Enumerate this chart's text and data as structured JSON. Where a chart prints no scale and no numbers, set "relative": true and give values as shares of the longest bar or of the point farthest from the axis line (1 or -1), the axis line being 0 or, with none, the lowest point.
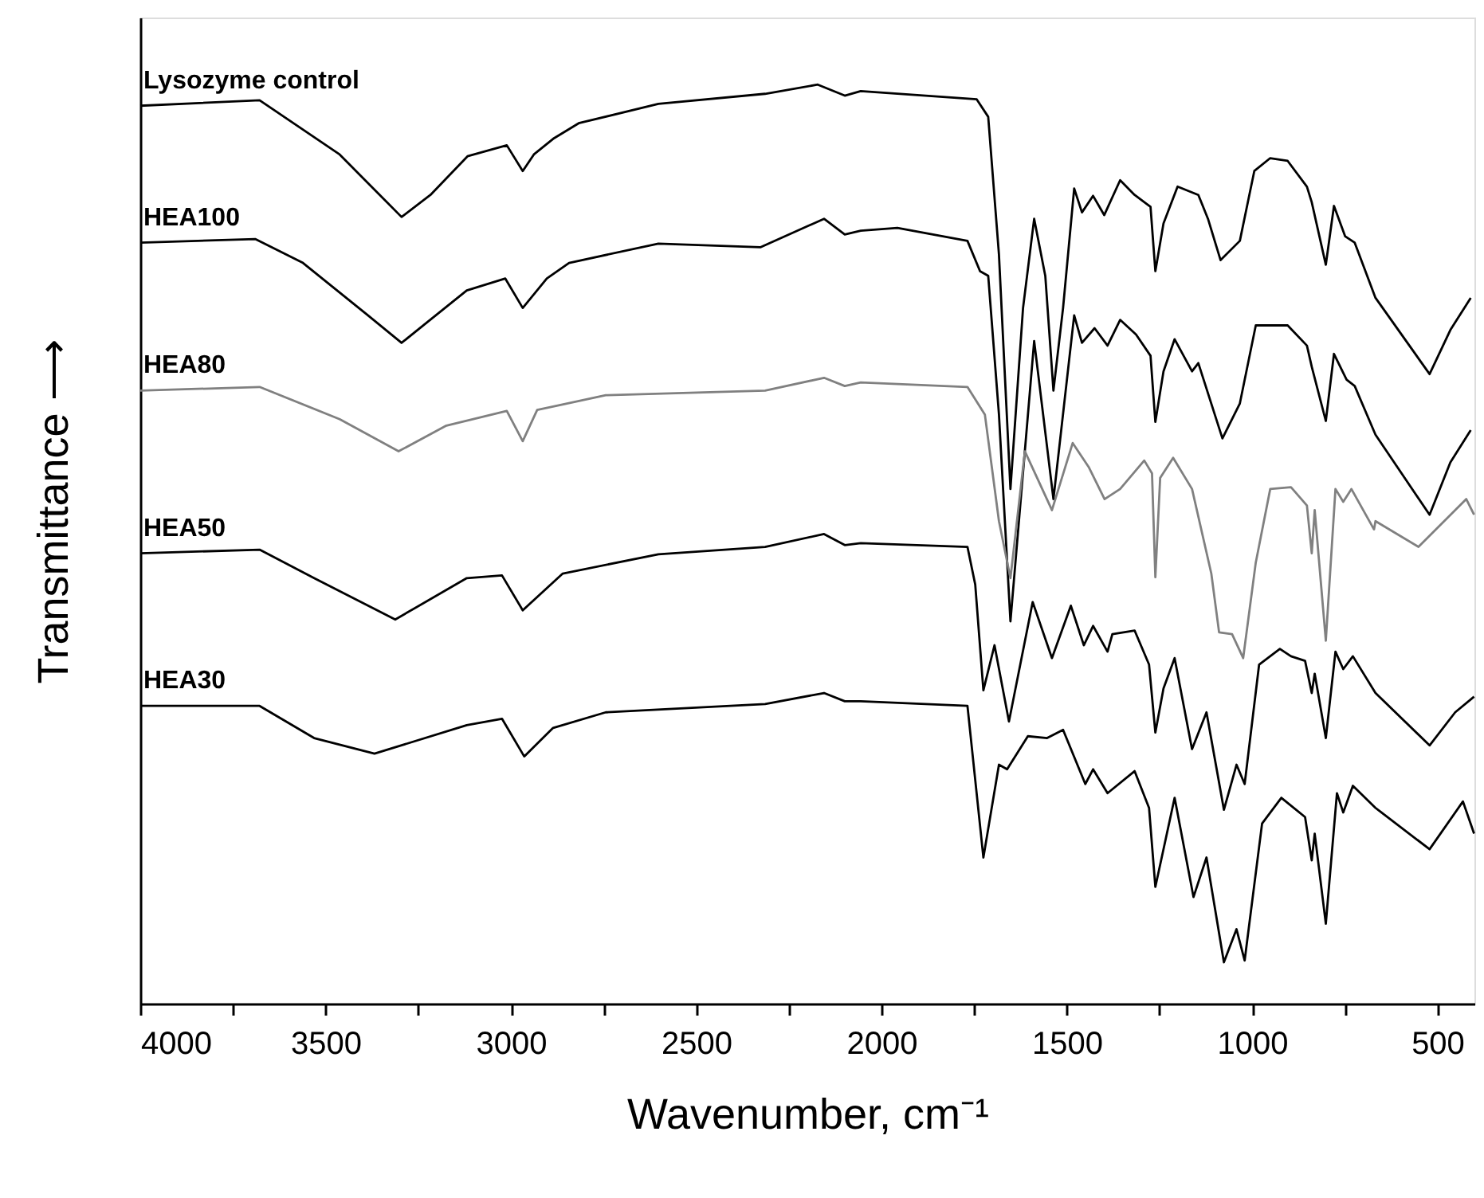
{
  "chart_data": {
    "type": "line",
    "relative": true,
    "xlabel": "Wavenumber, cm⁻¹",
    "ylabel": "Transmittance ⟶",
    "xlim": [
      4000,
      400
    ],
    "xticks": [
      4000,
      {
        "value": 3750,
        "label": null
      },
      3500,
      {
        "value": 3250,
        "label": null
      },
      3000,
      {
        "value": 2750,
        "label": null
      },
      2500,
      {
        "value": 2250,
        "label": null
      },
      2000,
      {
        "value": 1750,
        "label": null
      },
      1500,
      {
        "value": 1250,
        "label": null
      },
      1000,
      {
        "value": 750,
        "label": null
      },
      500
    ],
    "grid": false,
    "line_style": "solid",
    "marker": "none",
    "series": [
      {
        "name": "Lysozyme control",
        "color": "#000000",
        "x": [
          4000,
          3678,
          3462,
          3295,
          3217,
          3117,
          3011,
          2968,
          2938,
          2886,
          2817,
          2602,
          2314,
          2172,
          2099,
          2056,
          1743,
          1712,
          1683,
          1652,
          1618,
          1588,
          1558,
          1536,
          1510,
          1480,
          1459,
          1429,
          1399,
          1356,
          1317,
          1274,
          1261,
          1239,
          1201,
          1145,
          1119,
          1085,
          1033,
          994,
          951,
          904,
          852,
          839,
          801,
          779,
          749,
          723,
          667,
          521,
          465,
          410
        ],
        "values": [
          0.977,
          0.983,
          0.924,
          0.856,
          0.88,
          0.922,
          0.934,
          0.906,
          0.924,
          0.941,
          0.958,
          0.979,
          0.99,
          1.0,
          0.988,
          0.993,
          0.984,
          0.965,
          0.815,
          0.56,
          0.757,
          0.854,
          0.792,
          0.667,
          0.757,
          0.887,
          0.861,
          0.879,
          0.858,
          0.896,
          0.88,
          0.867,
          0.797,
          0.849,
          0.889,
          0.88,
          0.854,
          0.809,
          0.83,
          0.906,
          0.92,
          0.917,
          0.889,
          0.872,
          0.804,
          0.868,
          0.835,
          0.828,
          0.768,
          0.685,
          0.733,
          0.768
        ]
      },
      {
        "name": "HEA100",
        "color": "#000000",
        "x": [
          4000,
          3690,
          3561,
          3389,
          3295,
          3230,
          3119,
          3015,
          2968,
          2903,
          2843,
          2602,
          2327,
          2155,
          2099,
          2056,
          1957,
          1768,
          1734,
          1712,
          1683,
          1652,
          1588,
          1536,
          1480,
          1459,
          1425,
          1390,
          1356,
          1313,
          1274,
          1261,
          1239,
          1209,
          1162,
          1145,
          1080,
          1033,
          990,
          904,
          852,
          839,
          801,
          779,
          745,
          723,
          667,
          521,
          465,
          410
        ],
        "values": [
          0.828,
          0.832,
          0.806,
          0.75,
          0.719,
          0.74,
          0.776,
          0.789,
          0.757,
          0.789,
          0.806,
          0.827,
          0.823,
          0.854,
          0.837,
          0.841,
          0.844,
          0.83,
          0.797,
          0.792,
          0.641,
          0.416,
          0.721,
          0.549,
          0.749,
          0.719,
          0.735,
          0.716,
          0.744,
          0.728,
          0.705,
          0.633,
          0.688,
          0.723,
          0.688,
          0.697,
          0.615,
          0.653,
          0.738,
          0.738,
          0.716,
          0.693,
          0.634,
          0.707,
          0.679,
          0.672,
          0.619,
          0.532,
          0.589,
          0.624
        ]
      },
      {
        "name": "HEA80",
        "color": "#808080",
        "x": [
          4000,
          3678,
          3462,
          3303,
          3174,
          3011,
          2968,
          2929,
          2744,
          2314,
          2155,
          2099,
          2056,
          1768,
          1721,
          1683,
          1652,
          1613,
          1540,
          1484,
          1441,
          1398,
          1356,
          1291,
          1270,
          1261,
          1248,
          1213,
          1162,
          1110,
          1089,
          1054,
          1024,
          990,
          951,
          895,
          852,
          839,
          831,
          801,
          775,
          754,
          732,
          671,
          667,
          551,
          422,
          401
        ],
        "values": [
          0.667,
          0.671,
          0.636,
          0.601,
          0.629,
          0.645,
          0.612,
          0.646,
          0.662,
          0.667,
          0.681,
          0.672,
          0.676,
          0.671,
          0.641,
          0.525,
          0.463,
          0.601,
          0.537,
          0.61,
          0.584,
          0.549,
          0.56,
          0.591,
          0.577,
          0.464,
          0.572,
          0.594,
          0.56,
          0.468,
          0.404,
          0.402,
          0.376,
          0.48,
          0.56,
          0.562,
          0.542,
          0.49,
          0.537,
          0.395,
          0.56,
          0.546,
          0.56,
          0.516,
          0.525,
          0.497,
          0.549,
          0.532
        ]
      },
      {
        "name": "HEA50",
        "color": "#000000",
        "x": [
          4000,
          3678,
          3531,
          3312,
          3119,
          3024,
          2968,
          2860,
          2602,
          2314,
          2155,
          2099,
          2056,
          1768,
          1747,
          1725,
          1695,
          1656,
          1592,
          1540,
          1489,
          1454,
          1429,
          1390,
          1377,
          1317,
          1278,
          1261,
          1239,
          1209,
          1162,
          1123,
          1076,
          1042,
          1020,
          981,
          925,
          895,
          857,
          839,
          831,
          801,
          775,
          754,
          728,
          667,
          521,
          452,
          401
        ],
        "values": [
          0.49,
          0.494,
          0.463,
          0.418,
          0.463,
          0.466,
          0.428,
          0.468,
          0.489,
          0.497,
          0.511,
          0.499,
          0.501,
          0.497,
          0.456,
          0.341,
          0.39,
          0.307,
          0.437,
          0.376,
          0.433,
          0.39,
          0.411,
          0.383,
          0.402,
          0.406,
          0.369,
          0.295,
          0.343,
          0.376,
          0.277,
          0.317,
          0.211,
          0.26,
          0.239,
          0.369,
          0.386,
          0.378,
          0.373,
          0.338,
          0.359,
          0.289,
          0.383,
          0.364,
          0.378,
          0.338,
          0.281,
          0.317,
          0.334
        ]
      },
      {
        "name": "HEA30",
        "color": "#000000",
        "x": [
          4000,
          3678,
          3531,
          3368,
          3119,
          3024,
          2964,
          2886,
          2744,
          2314,
          2155,
          2099,
          2056,
          1768,
          1725,
          1683,
          1661,
          1605,
          1553,
          1510,
          1450,
          1429,
          1390,
          1317,
          1278,
          1261,
          1209,
          1158,
          1123,
          1076,
          1042,
          1020,
          973,
          921,
          857,
          839,
          831,
          801,
          771,
          754,
          728,
          667,
          521,
          431,
          401
        ],
        "values": [
          0.324,
          0.324,
          0.289,
          0.272,
          0.303,
          0.31,
          0.269,
          0.3,
          0.317,
          0.326,
          0.338,
          0.329,
          0.329,
          0.324,
          0.159,
          0.26,
          0.255,
          0.291,
          0.289,
          0.298,
          0.239,
          0.255,
          0.229,
          0.253,
          0.213,
          0.127,
          0.224,
          0.116,
          0.159,
          0.045,
          0.081,
          0.047,
          0.196,
          0.224,
          0.203,
          0.156,
          0.185,
          0.087,
          0.229,
          0.208,
          0.237,
          0.213,
          0.168,
          0.22,
          0.185
        ]
      }
    ]
  }
}
